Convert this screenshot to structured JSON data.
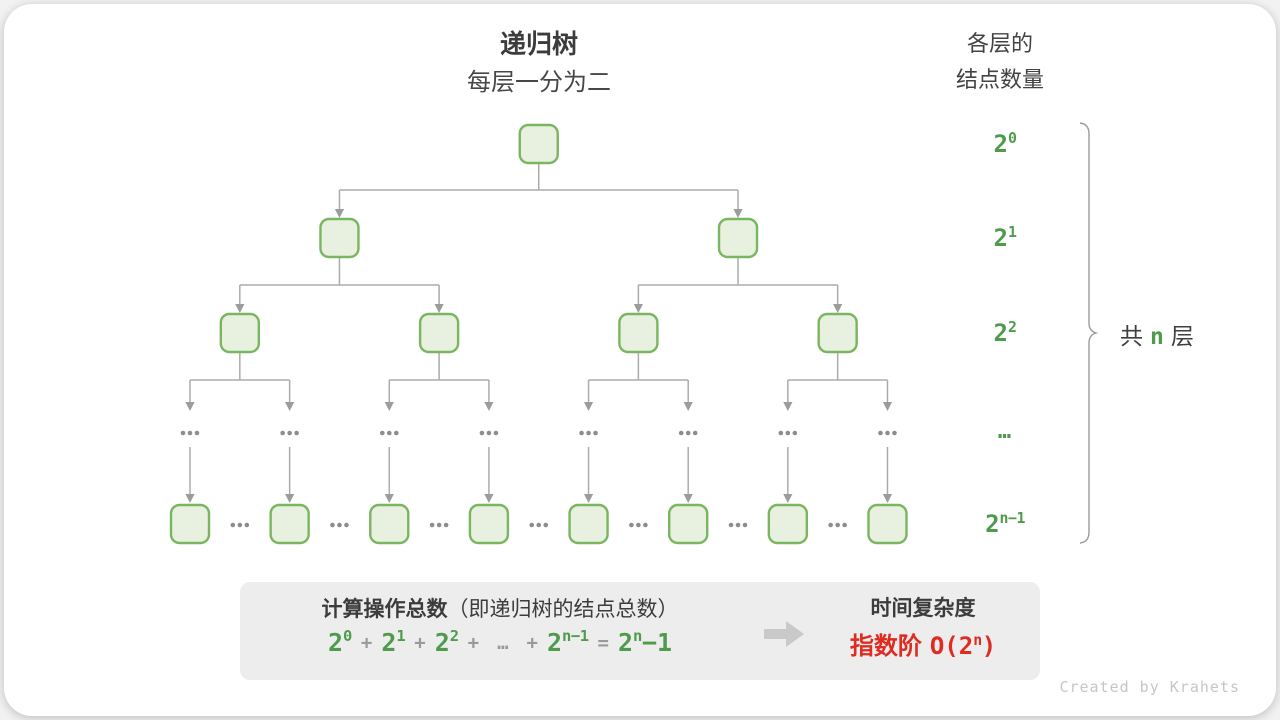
{
  "header": {
    "title": "递归树",
    "subtitle": "每层一分为二"
  },
  "right_header": {
    "line1": "各层的",
    "line2": "结点数量"
  },
  "level_labels": {
    "l0": {
      "base": "2",
      "sup": "0"
    },
    "l1": {
      "base": "2",
      "sup": "1"
    },
    "l2": {
      "base": "2",
      "sup": "2"
    },
    "l3": {
      "dots": "…"
    },
    "l4": {
      "base": "2",
      "sup": "n−1"
    }
  },
  "brace": {
    "prefix": "共",
    "n": "n",
    "suffix": "层"
  },
  "summary": {
    "title_bold": "计算操作总数",
    "title_rest": "（即递归树的结点总数）",
    "formula": {
      "t1": {
        "base": "2",
        "sup": "0"
      },
      "op1": "+",
      "t2": {
        "base": "2",
        "sup": "1"
      },
      "op2": "+",
      "t3": {
        "base": "2",
        "sup": "2"
      },
      "op3": "+",
      "ellipsis": "…",
      "op4": "+",
      "t4": {
        "base": "2",
        "sup": "n−1"
      },
      "eq": "=",
      "t5": {
        "base": "2",
        "sup": "n",
        "tail": "−1"
      }
    },
    "complexity": {
      "title": "时间复杂度",
      "label_cjk": "指数阶",
      "o_open": "O(2",
      "o_sup": "n",
      "o_close": ")"
    }
  },
  "watermark": "Created by Krahets",
  "colors": {
    "green_text": "#4e9b4e",
    "node_fill": "#e8f1e0",
    "node_border": "#7ab55f",
    "line": "#ababab",
    "arrowhead": "#9c9c9c",
    "dots": "#8d8d8d",
    "box_bg": "#ededed",
    "red": "#df2b20",
    "big_arrow": "#c9c9c9"
  }
}
